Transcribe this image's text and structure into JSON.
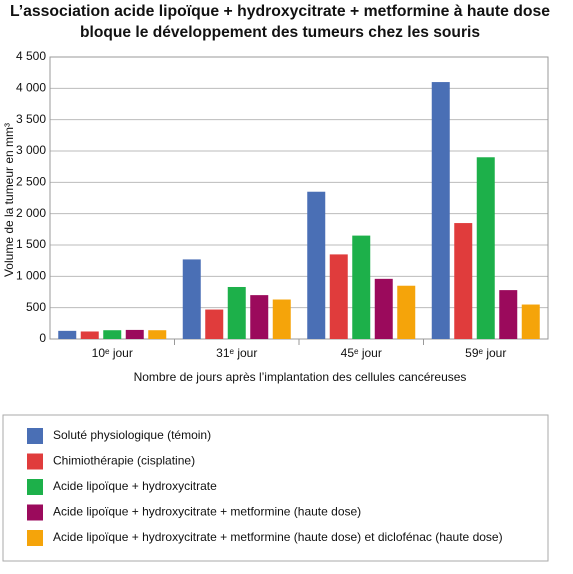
{
  "chart_data": {
    "type": "bar",
    "title": "L’association acide lipoïque + hydroxycitrate + metformine à haute dose",
    "subtitle": "bloque le développement des tumeurs chez les souris",
    "x_label": "Nombre de jours après l’implantation des cellules cancéreuses",
    "y_label": "Volume de la tumeur en mm³",
    "categories": [
      "10ᵉ jour",
      "31ᵉ jour",
      "45ᵉ jour",
      "59ᵉ jour"
    ],
    "series": [
      {
        "name": "Soluté physiologique (témoin)",
        "color": "#4a6fb5",
        "values": [
          130,
          1270,
          2350,
          4100
        ]
      },
      {
        "name": "Chimiothérapie (cisplatine)",
        "color": "#e03c3c",
        "values": [
          120,
          470,
          1350,
          1850
        ]
      },
      {
        "name": "Acide lipoïque + hydroxycitrate",
        "color": "#1db04a",
        "values": [
          140,
          830,
          1650,
          2900
        ]
      },
      {
        "name": "Acide lipoïque + hydroxycitrate + metformine (haute dose)",
        "color": "#9b0a5c",
        "values": [
          145,
          700,
          960,
          780
        ]
      },
      {
        "name": "Acide lipoïque + hydroxycitrate + metformine (haute dose) et diclofénac (haute dose)",
        "color": "#f5a40a",
        "values": [
          140,
          630,
          850,
          550
        ]
      }
    ],
    "ylim": [
      0,
      4500
    ],
    "yticks": [
      0,
      500,
      {
        "value": 1000,
        "label": "1 000"
      },
      {
        "value": 1500,
        "label": "1 500"
      },
      {
        "value": 2000,
        "label": "2 000"
      },
      {
        "value": 2500,
        "label": "2 500"
      },
      {
        "value": 3000,
        "label": "3 000"
      },
      {
        "value": 3500,
        "label": "3 500"
      },
      {
        "value": 4000,
        "label": "4 000"
      },
      {
        "value": 4500,
        "label": "4 500"
      }
    ],
    "grid": true
  }
}
